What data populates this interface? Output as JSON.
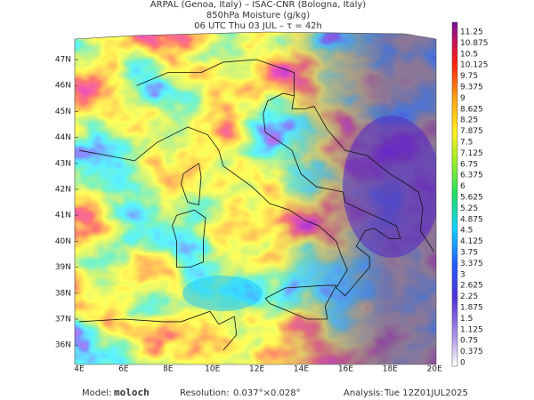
{
  "title": {
    "line1": "ARPAL (Genoa, Italy)  –  ISAC-CNR (Bologna, Italy)",
    "line2": "850hPa Moisture (g/kg)",
    "line3": "06 UTC Thu 03 JUL  –  τ = 42h"
  },
  "lat_labels": [
    "47N",
    "46N",
    "45N",
    "44N",
    "43N",
    "42N",
    "41N",
    "40N",
    "39N",
    "38N",
    "37N",
    "36N"
  ],
  "lon_labels": [
    "4E",
    "6E",
    "8E",
    "10E",
    "12E",
    "14E",
    "16E",
    "18E",
    "20E"
  ],
  "colorbar_labels": [
    "11.25",
    "10.875",
    "10.5",
    "10.125",
    "9.75",
    "9.375",
    "9",
    "8.625",
    "8.25",
    "7.875",
    "7.5",
    "7.125",
    "6.75",
    "6.375",
    "6",
    "5.625",
    "5.25",
    "4.875",
    "4.5",
    "4.125",
    "3.75",
    "3.375",
    "3",
    "2.625",
    "2.25",
    "1.875",
    "1.5",
    "1.125",
    "0.75",
    "0.375",
    "0"
  ],
  "footer": {
    "model_label": "Model:",
    "model_value": "moloch",
    "resolution_label": "Resolution:",
    "resolution_value": "0.037°×0.028°",
    "analysis_label": "Analysis:",
    "analysis_value": "Tue 12Z01JUL2025"
  }
}
